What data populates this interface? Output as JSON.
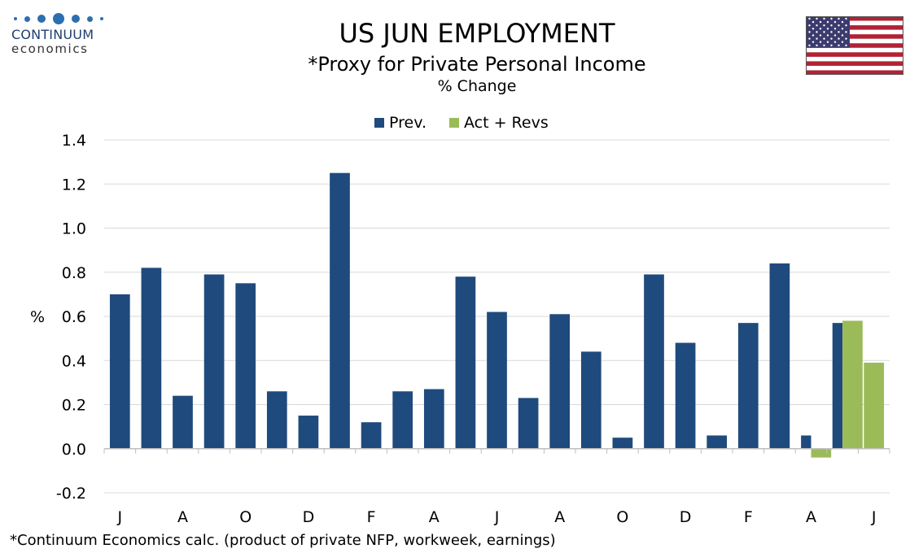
{
  "logo": {
    "word1": "CONTINUUM",
    "word2": "economics"
  },
  "flag_name": "us-flag",
  "colors": {
    "prev": "#1f4a7d",
    "act": "#9bbb59",
    "grid": "#d9d9d9",
    "axis": "#bfbfbf"
  },
  "chart_data": {
    "type": "bar",
    "title": "US JUN EMPLOYMENT",
    "subtitle": "*Proxy for Private Personal Income",
    "subtitle2": "% Change",
    "ylabel": "%",
    "xlabel": "",
    "footnote": "*Continuum Economics calc. (product of private NFP, workweek, earnings)",
    "ylim": [
      -0.2,
      1.4
    ],
    "yticks": [
      "1.4",
      "1.2",
      "1.0",
      "0.8",
      "0.6",
      "0.4",
      "0.2",
      "0.0",
      "-0.2"
    ],
    "x_tick_labels": [
      "J",
      "A",
      "O",
      "D",
      "F",
      "A",
      "J",
      "A",
      "O",
      "D",
      "F",
      "A",
      "J"
    ],
    "legend": "top-center",
    "grid": true,
    "series": [
      {
        "name": "Prev.",
        "color": "#1f4a7d",
        "values": [
          0.7,
          0.82,
          0.24,
          0.79,
          0.75,
          0.26,
          0.15,
          1.25,
          0.12,
          0.26,
          0.27,
          0.78,
          0.62,
          0.23,
          0.61,
          0.44,
          0.05,
          0.79,
          0.48,
          0.06,
          0.57,
          0.84,
          0.06,
          0.57,
          null
        ]
      },
      {
        "name": "Act + Revs",
        "color": "#9bbb59",
        "values": [
          null,
          null,
          null,
          null,
          null,
          null,
          null,
          null,
          null,
          null,
          null,
          null,
          null,
          null,
          null,
          null,
          null,
          null,
          null,
          null,
          null,
          null,
          -0.04,
          0.58,
          0.39
        ]
      }
    ]
  }
}
